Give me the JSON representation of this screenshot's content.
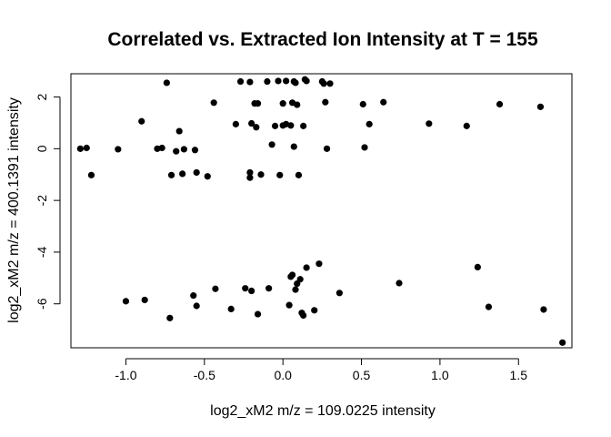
{
  "chart_data": {
    "type": "scatter",
    "title": "Correlated vs. Extracted Ion Intensity at T = 155",
    "xlabel": "log2_xM2 m/z = 109.0225 intensity",
    "ylabel": "log2_xM2 m/z = 400.1391 intensity",
    "xlim": [
      -1.35,
      1.84
    ],
    "ylim": [
      -7.7,
      2.9
    ],
    "xticks": [
      -1.0,
      -0.5,
      0.0,
      0.5,
      1.0,
      1.5
    ],
    "xtick_labels": [
      "-1.0",
      "-0.5",
      "0.0",
      "0.5",
      "1.0",
      "1.5"
    ],
    "yticks": [
      -6,
      -4,
      -2,
      0,
      2
    ],
    "ytick_labels": [
      "-6",
      "-4",
      "-2",
      "0",
      "2"
    ],
    "grid": false,
    "color": "#000000",
    "points": [
      [
        -1.29,
        0.0
      ],
      [
        -1.25,
        0.03
      ],
      [
        -1.22,
        -1.02
      ],
      [
        -1.05,
        -0.02
      ],
      [
        -0.9,
        1.06
      ],
      [
        -0.8,
        0.0
      ],
      [
        -0.77,
        0.03
      ],
      [
        -0.74,
        2.55
      ],
      [
        -0.71,
        -1.02
      ],
      [
        -0.68,
        -0.1
      ],
      [
        -0.66,
        0.68
      ],
      [
        -0.64,
        -0.97
      ],
      [
        -0.63,
        -0.02
      ],
      [
        -0.56,
        -0.05
      ],
      [
        -0.55,
        -0.92
      ],
      [
        -0.48,
        -1.07
      ],
      [
        -0.44,
        1.78
      ],
      [
        -0.3,
        0.95
      ],
      [
        -0.27,
        2.6
      ],
      [
        -0.21,
        -1.12
      ],
      [
        -0.21,
        -0.92
      ],
      [
        -0.21,
        2.58
      ],
      [
        -0.2,
        0.98
      ],
      [
        -0.18,
        1.75
      ],
      [
        -0.17,
        0.83
      ],
      [
        -0.16,
        1.75
      ],
      [
        -0.14,
        -1.0
      ],
      [
        -0.1,
        2.6
      ],
      [
        -0.07,
        0.16
      ],
      [
        -0.05,
        0.88
      ],
      [
        -0.03,
        2.62
      ],
      [
        -0.02,
        -1.02
      ],
      [
        0.0,
        0.9
      ],
      [
        0.0,
        1.75
      ],
      [
        0.02,
        0.95
      ],
      [
        0.02,
        2.62
      ],
      [
        0.05,
        0.9
      ],
      [
        0.06,
        1.78
      ],
      [
        0.07,
        2.6
      ],
      [
        0.07,
        0.08
      ],
      [
        0.08,
        2.55
      ],
      [
        0.09,
        1.7
      ],
      [
        0.1,
        -1.02
      ],
      [
        0.13,
        0.88
      ],
      [
        0.14,
        2.68
      ],
      [
        0.15,
        2.62
      ],
      [
        0.25,
        2.6
      ],
      [
        0.26,
        2.52
      ],
      [
        0.27,
        1.8
      ],
      [
        0.28,
        0.0
      ],
      [
        0.3,
        2.52
      ],
      [
        0.51,
        1.72
      ],
      [
        0.52,
        0.05
      ],
      [
        0.55,
        0.95
      ],
      [
        0.64,
        1.8
      ],
      [
        0.93,
        0.97
      ],
      [
        1.17,
        0.88
      ],
      [
        1.38,
        1.72
      ],
      [
        1.64,
        1.62
      ],
      [
        -1.0,
        -5.9
      ],
      [
        -0.88,
        -5.85
      ],
      [
        -0.72,
        -6.55
      ],
      [
        -0.57,
        -5.68
      ],
      [
        -0.55,
        -6.08
      ],
      [
        -0.43,
        -5.42
      ],
      [
        -0.33,
        -6.2
      ],
      [
        -0.24,
        -5.4
      ],
      [
        -0.2,
        -5.5
      ],
      [
        -0.16,
        -6.4
      ],
      [
        -0.09,
        -5.4
      ],
      [
        0.04,
        -6.05
      ],
      [
        0.05,
        -4.95
      ],
      [
        0.06,
        -4.88
      ],
      [
        0.08,
        -5.45
      ],
      [
        0.09,
        -5.22
      ],
      [
        0.11,
        -5.05
      ],
      [
        0.12,
        -6.35
      ],
      [
        0.13,
        -6.45
      ],
      [
        0.15,
        -4.6
      ],
      [
        0.2,
        -6.25
      ],
      [
        0.23,
        -4.45
      ],
      [
        0.36,
        -5.58
      ],
      [
        0.74,
        -5.2
      ],
      [
        1.24,
        -4.58
      ],
      [
        1.31,
        -6.12
      ],
      [
        1.66,
        -6.22
      ],
      [
        1.78,
        -7.5
      ]
    ]
  }
}
